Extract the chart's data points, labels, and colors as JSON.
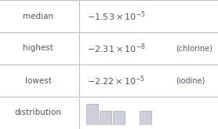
{
  "rows": [
    {
      "label": "median",
      "value": "$-1.53\\times10^{-5}$",
      "note": ""
    },
    {
      "label": "highest",
      "value": "$-2.31\\times10^{-8}$",
      "note": "(chlorine)"
    },
    {
      "label": "lowest",
      "value": "$-2.22\\times10^{-5}$",
      "note": "(iodine)"
    },
    {
      "label": "distribution",
      "value": "",
      "note": ""
    }
  ],
  "hist_bars": [
    3,
    2,
    2,
    0,
    2
  ],
  "bar_color": "#cdd0db",
  "bar_edge_color": "#aaaaaa",
  "border_color": "#bbbbbb",
  "bg_color": "#ffffff",
  "text_color": "#555566",
  "label_fontsize": 7.5,
  "value_fontsize": 8.0,
  "note_fontsize": 7.0,
  "col_split": 0.365,
  "fig_width": 2.78,
  "fig_height": 1.64
}
